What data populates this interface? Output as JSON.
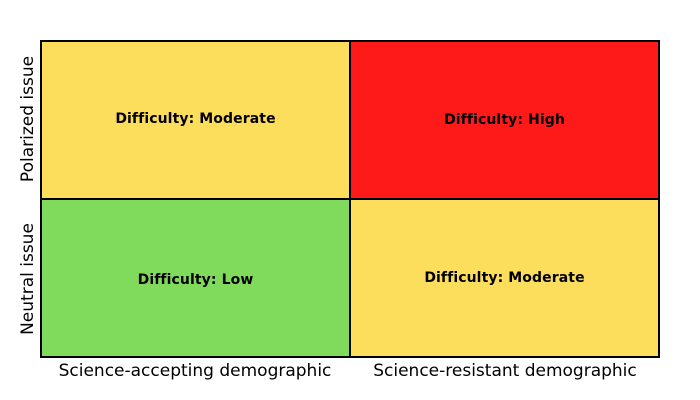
{
  "quadrants": {
    "top_left": {
      "label": "Difficulty: Moderate",
      "color": "#FDDD5C"
    },
    "top_right": {
      "label": "Difficulty: High",
      "color": "#FF1A1A"
    },
    "bottom_left": {
      "label": "Difficulty: Low",
      "color": "#80DB5C"
    },
    "bottom_right": {
      "label": "Difficulty: Moderate",
      "color": "#FDDD5C"
    }
  },
  "axes": {
    "y_top": "Polarized issue",
    "y_bottom": "Neutral issue",
    "x_left": "Science-accepting demographic",
    "x_right": "Science-resistant demographic"
  }
}
